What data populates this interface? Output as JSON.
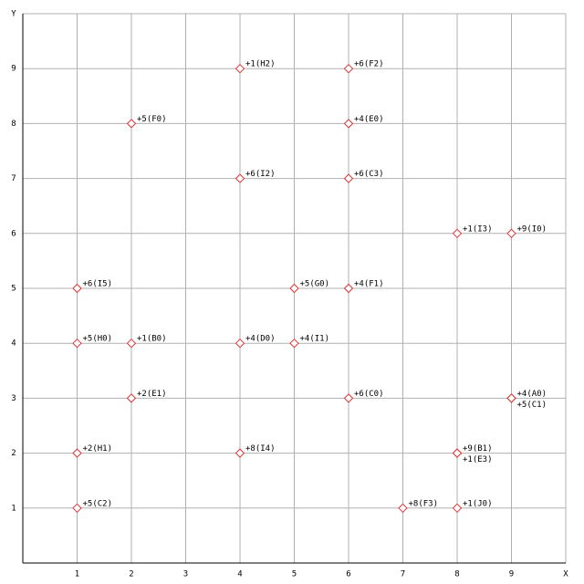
{
  "chart_data": {
    "type": "scatter",
    "x_label": "X",
    "y_label": "Y",
    "x": [
      4,
      6,
      2,
      6,
      4,
      6,
      8,
      9,
      1,
      5,
      6,
      1,
      2,
      4,
      5,
      2,
      6,
      9,
      9,
      1,
      4,
      8,
      8,
      1,
      7,
      8
    ],
    "values": [
      9,
      9,
      8,
      8,
      7,
      7,
      6,
      6,
      5,
      5,
      5,
      4,
      4,
      4,
      4,
      3,
      3,
      3,
      3,
      2,
      2,
      2,
      2,
      1,
      1,
      1
    ],
    "labels": [
      "+1(H2)",
      "+6(F2)",
      "+5(F0)",
      "+4(E0)",
      "+6(I2)",
      "+6(C3)",
      "+1(I3)",
      "+9(I0)",
      "+6(I5)",
      "+5(G0)",
      "+4(F1)",
      "+5(H0)",
      "+1(B0)",
      "+4(D0)",
      "+4(I1)",
      "+2(E1)",
      "+6(C0)",
      "+4(A0)",
      "+5(C1)",
      "+2(H1)",
      "+8(I4)",
      "+9(B1)",
      "+1(E3)",
      "+5(C2)",
      "+8(F3)",
      "+1(J0)"
    ],
    "color": "#e03030",
    "xlim": [
      0,
      10
    ],
    "ylim": [
      0,
      10
    ],
    "xticks": [
      1,
      2,
      3,
      4,
      5,
      6,
      7,
      8,
      9
    ],
    "yticks": [
      1,
      2,
      3,
      4,
      5,
      6,
      7,
      8,
      9
    ],
    "grid": true
  }
}
